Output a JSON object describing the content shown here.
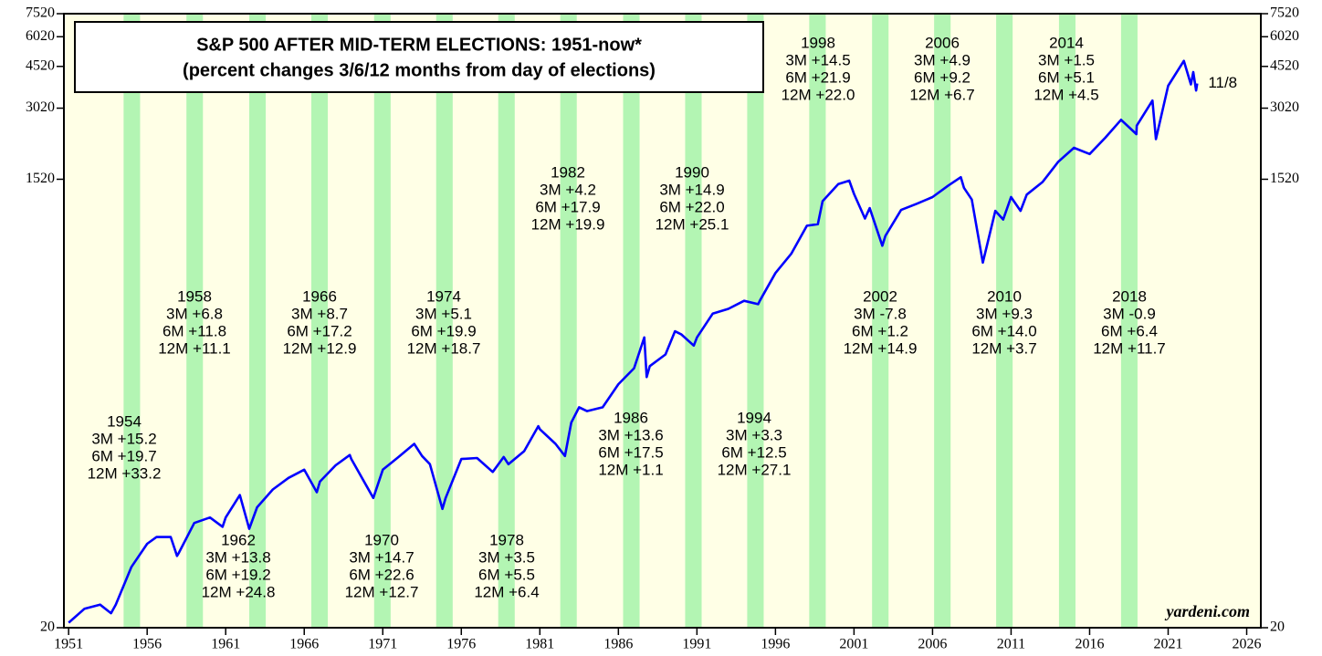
{
  "chart_data": {
    "type": "line",
    "title": [
      "S&P 500 AFTER MID-TERM ELECTIONS: 1951-now*",
      "(percent changes 3/6/12 months from day of elections)"
    ],
    "log_scale": true,
    "xlim": [
      1950.7,
      2026.9
    ],
    "xticks": [
      1951,
      1956,
      1961,
      1966,
      1971,
      1976,
      1981,
      1986,
      1991,
      1996,
      2001,
      2006,
      2011,
      2016,
      2021,
      2026
    ],
    "ylim": [
      20,
      7520
    ],
    "yticks": [
      20,
      1520,
      3020,
      4520,
      6020,
      7520
    ],
    "background": "#ffffe6",
    "shade_color": "#b3f5b3",
    "shaded_periods": [
      [
        1954.5,
        1955.55
      ],
      [
        1958.5,
        1959.55
      ],
      [
        1962.5,
        1963.55
      ],
      [
        1966.45,
        1967.5
      ],
      [
        1970.45,
        1971.5
      ],
      [
        1974.4,
        1975.45
      ],
      [
        1978.35,
        1979.4
      ],
      [
        1982.3,
        1983.35
      ],
      [
        1986.3,
        1987.35
      ],
      [
        1990.25,
        1991.3
      ],
      [
        1994.2,
        1995.25
      ],
      [
        1998.15,
        1999.2
      ],
      [
        2002.15,
        2003.2
      ],
      [
        2006.1,
        2007.15
      ],
      [
        2010.05,
        2011.1
      ],
      [
        2014.05,
        2015.1
      ],
      [
        2018.0,
        2019.05
      ]
    ],
    "x": [
      1951.0,
      1952.0,
      1953.0,
      1953.7,
      1954.0,
      1955.0,
      1956.0,
      1956.6,
      1957.5,
      1957.9,
      1958.0,
      1959.0,
      1960.0,
      1960.8,
      1961.0,
      1961.9,
      1962.5,
      1963.0,
      1964.0,
      1965.0,
      1966.0,
      1966.8,
      1967.0,
      1968.0,
      1968.9,
      1969.0,
      1970.4,
      1971.0,
      1972.0,
      1973.0,
      1973.5,
      1974.0,
      1974.8,
      1975.0,
      1976.0,
      1977.0,
      1978.0,
      1978.7,
      1979.0,
      1980.0,
      1980.9,
      1981.0,
      1982.0,
      1982.6,
      1983.0,
      1983.5,
      1984.0,
      1985.0,
      1986.0,
      1987.0,
      1987.65,
      1987.8,
      1988.0,
      1989.0,
      1989.6,
      1990.0,
      1990.8,
      1991.0,
      1992.0,
      1993.0,
      1994.0,
      1994.9,
      1995.0,
      1996.0,
      1997.0,
      1998.0,
      1998.7,
      1999.0,
      2000.0,
      2000.7,
      2001.0,
      2001.7,
      2002.0,
      2002.8,
      2003.0,
      2004.0,
      2005.0,
      2006.0,
      2007.0,
      2007.8,
      2008.0,
      2008.5,
      2009.2,
      2010.0,
      2010.5,
      2011.0,
      2011.6,
      2012.0,
      2013.0,
      2014.0,
      2015.0,
      2016.0,
      2017.0,
      2018.0,
      2018.98,
      2019.0,
      2020.0,
      2020.22,
      2021.0,
      2022.0,
      2022.45,
      2022.6,
      2022.78,
      2022.85
    ],
    "series": [
      {
        "color": "#0000ff",
        "values": [
          21,
          24,
          25,
          23,
          25,
          36,
          45,
          48,
          48,
          40,
          41,
          55,
          58,
          53,
          58,
          72,
          52,
          64,
          76,
          85,
          92,
          74,
          82,
          96,
          106,
          102,
          70,
          92,
          104,
          118,
          105,
          97,
          63,
          70,
          102,
          103,
          90,
          104,
          97,
          110,
          140,
          136,
          118,
          105,
          145,
          168,
          162,
          168,
          210,
          245,
          330,
          225,
          250,
          280,
          350,
          340,
          305,
          330,
          415,
          435,
          470,
          455,
          470,
          615,
          740,
          970,
          985,
          1230,
          1450,
          1500,
          1320,
          1040,
          1150,
          800,
          880,
          1130,
          1200,
          1280,
          1430,
          1550,
          1400,
          1250,
          680,
          1120,
          1030,
          1280,
          1120,
          1310,
          1480,
          1800,
          2060,
          1940,
          2270,
          2700,
          2350,
          2550,
          3250,
          2240,
          3750,
          4770,
          3800,
          4280,
          3580,
          3830
        ]
      }
    ],
    "end_label": "11/8",
    "source": "yardeni.com",
    "annotations": [
      {
        "label": "1954",
        "lines": [
          "3M +15.2",
          "6M +19.7",
          "12M +33.2"
        ]
      },
      {
        "label": "1958",
        "lines": [
          "3M +6.8",
          "6M +11.8",
          "12M +11.1"
        ]
      },
      {
        "label": "1962",
        "lines": [
          "3M +13.8",
          "6M +19.2",
          "12M +24.8"
        ]
      },
      {
        "label": "1966",
        "lines": [
          "3M +8.7",
          "6M +17.2",
          "12M +12.9"
        ]
      },
      {
        "label": "1970",
        "lines": [
          "3M +14.7",
          "6M +22.6",
          "12M +12.7"
        ]
      },
      {
        "label": "1974",
        "lines": [
          "3M +5.1",
          "6M +19.9",
          "12M +18.7"
        ]
      },
      {
        "label": "1978",
        "lines": [
          "3M +3.5",
          "6M +5.5",
          "12M +6.4"
        ]
      },
      {
        "label": "1982",
        "lines": [
          "3M +4.2",
          "6M +17.9",
          "12M +19.9"
        ]
      },
      {
        "label": "1986",
        "lines": [
          "3M +13.6",
          "6M +17.5",
          "12M +1.1"
        ]
      },
      {
        "label": "1990",
        "lines": [
          "3M +14.9",
          "6M +22.0",
          "12M +25.1"
        ]
      },
      {
        "label": "1994",
        "lines": [
          "3M +3.3",
          "6M +12.5",
          "12M +27.1"
        ]
      },
      {
        "label": "1998",
        "lines": [
          "3M +14.5",
          "6M +21.9",
          "12M +22.0"
        ]
      },
      {
        "label": "2002",
        "lines": [
          "3M -7.8",
          "6M +1.2",
          "12M +14.9"
        ]
      },
      {
        "label": "2006",
        "lines": [
          "3M +4.9",
          "6M +9.2",
          "12M +6.7"
        ]
      },
      {
        "label": "2010",
        "lines": [
          "3M +9.3",
          "6M +14.0",
          "12M +3.7"
        ]
      },
      {
        "label": "2014",
        "lines": [
          "3M +1.5",
          "6M +5.1",
          "12M +4.5"
        ]
      },
      {
        "label": "2018",
        "lines": [
          "3M -0.9",
          "6M +6.4",
          "12M +11.7"
        ]
      }
    ]
  }
}
